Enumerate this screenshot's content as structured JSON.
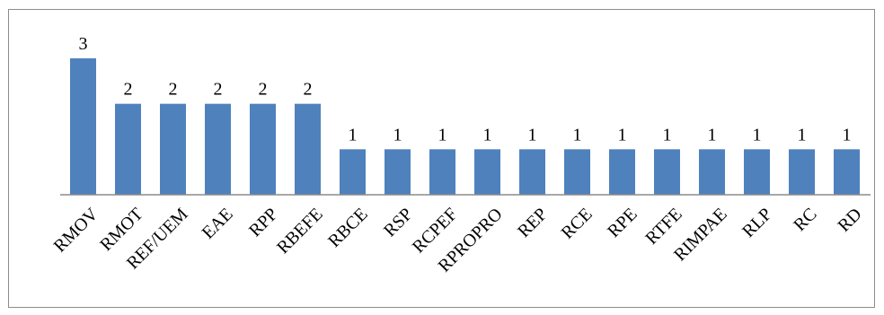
{
  "chart_data": {
    "type": "bar",
    "categories": [
      "RMOV",
      "RMOT",
      "REF/UEM",
      "EAE",
      "RPP",
      "RBEFE",
      "RBCE",
      "RSP",
      "RCPEF",
      "RPROPRO",
      "REP",
      "RCE",
      "RPE",
      "RTFE",
      "RIMPAE",
      "RLP",
      "RC",
      "RD"
    ],
    "values": [
      3,
      2,
      2,
      2,
      2,
      2,
      1,
      1,
      1,
      1,
      1,
      1,
      1,
      1,
      1,
      1,
      1,
      1
    ],
    "ylim": [
      0,
      3
    ],
    "grid": false,
    "legend": "none",
    "data_labels": true,
    "bar_color": "#4f81bd",
    "axis_color": "#8c8c8c"
  }
}
